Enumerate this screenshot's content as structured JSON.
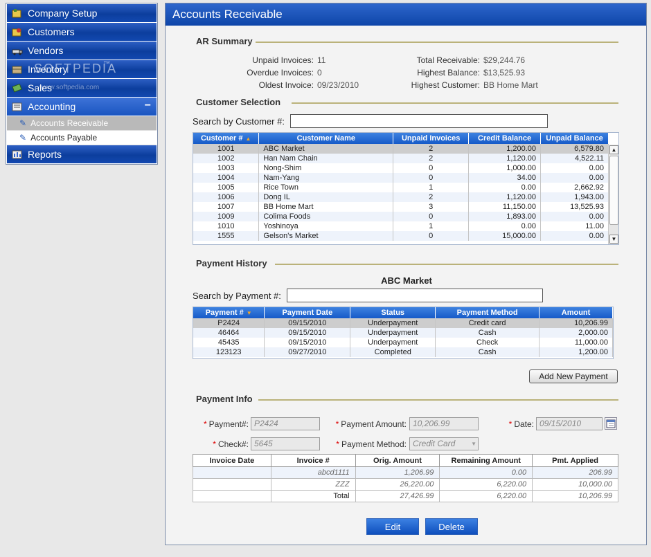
{
  "sidebar": {
    "items": [
      {
        "label": "Company Setup",
        "icon": "company-setup-icon"
      },
      {
        "label": "Customers",
        "icon": "customers-icon"
      },
      {
        "label": "Vendors",
        "icon": "vendors-icon"
      },
      {
        "label": "Inventory",
        "icon": "inventory-icon"
      },
      {
        "label": "Sales",
        "icon": "sales-icon"
      },
      {
        "label": "Accounting",
        "icon": "accounting-icon",
        "expanded": true
      },
      {
        "label": "Reports",
        "icon": "reports-icon"
      }
    ],
    "sub_items": [
      {
        "label": "Accounts Receivable",
        "selected": true
      },
      {
        "label": "Accounts Payable",
        "selected": false
      }
    ],
    "collapse_symbol": "−",
    "watermark": "SOFTPEDIA",
    "watermark_tm": "™",
    "watermark_url": "www.softpedia.com"
  },
  "header": {
    "title": "Accounts Receivable"
  },
  "ar_summary": {
    "title": "AR Summary",
    "unpaid_invoices_label": "Unpaid Invoices:",
    "unpaid_invoices": "11",
    "overdue_invoices_label": "Overdue Invoices:",
    "overdue_invoices": "0",
    "oldest_invoice_label": "Oldest Invoice:",
    "oldest_invoice": "09/23/2010",
    "total_receivable_label": "Total Receivable:",
    "total_receivable": "$29,244.76",
    "highest_balance_label": "Highest Balance:",
    "highest_balance": "$13,525.93",
    "highest_customer_label": "Highest Customer:",
    "highest_customer": "BB Home Mart"
  },
  "customer_selection": {
    "title": "Customer Selection",
    "search_label": "Search by Customer #:",
    "search_value": "",
    "columns": [
      "Customer #",
      "Customer Name",
      "Unpaid Invoices",
      "Credit Balance",
      "Unpaid Balance"
    ],
    "rows": [
      [
        "1001",
        "ABC Market",
        "2",
        "1,200.00",
        "6,579.80"
      ],
      [
        "1002",
        "Han Nam Chain",
        "2",
        "1,120.00",
        "4,522.11"
      ],
      [
        "1003",
        "Nong-Shim",
        "0",
        "1,000.00",
        "0.00"
      ],
      [
        "1004",
        "Nam-Yang",
        "0",
        "34.00",
        "0.00"
      ],
      [
        "1005",
        "Rice Town",
        "1",
        "0.00",
        "2,662.92"
      ],
      [
        "1006",
        "Dong IL",
        "2",
        "1,120.00",
        "1,943.00"
      ],
      [
        "1007",
        "BB Home Mart",
        "3",
        "11,150.00",
        "13,525.93"
      ],
      [
        "1009",
        "Colima Foods",
        "0",
        "1,893.00",
        "0.00"
      ],
      [
        "1010",
        "Yoshinoya",
        "1",
        "0.00",
        "11.00"
      ],
      [
        "1555",
        "Gelson's Market",
        "0",
        "15,000.00",
        "0.00"
      ]
    ]
  },
  "payment_history": {
    "title": "Payment History",
    "customer_name": "ABC Market",
    "search_label": "Search by Payment #:",
    "search_value": "",
    "columns": [
      "Payment #",
      "Payment Date",
      "Status",
      "Payment Method",
      "Amount"
    ],
    "rows": [
      [
        "P2424",
        "09/15/2010",
        "Underpayment",
        "Credit card",
        "10,206.99"
      ],
      [
        "46464",
        "09/15/2010",
        "Underpayment",
        "Cash",
        "2,000.00"
      ],
      [
        "45435",
        "09/15/2010",
        "Underpayment",
        "Check",
        "11,000.00"
      ],
      [
        "123123",
        "09/27/2010",
        "Completed",
        "Cash",
        "1,200.00"
      ]
    ],
    "add_button": "Add New Payment"
  },
  "payment_info": {
    "title": "Payment Info",
    "required_mark": "*",
    "payment_no_label": "Payment#:",
    "payment_no": "P2424",
    "payment_amount_label": "Payment Amount:",
    "payment_amount": "10,206.99",
    "date_label": "Date:",
    "date": "09/15/2010",
    "check_no_label": "Check#:",
    "check_no": "5645",
    "payment_method_label": "Payment Method:",
    "payment_method": "Credit Card",
    "invoice_columns": [
      "Invoice Date",
      "Invoice #",
      "Orig. Amount",
      "Remaining Amount",
      "Pmt. Applied"
    ],
    "invoice_rows": [
      [
        "",
        "abcd1111",
        "1,206.99",
        "0.00",
        "206.99"
      ],
      [
        "",
        "ZZZ",
        "26,220.00",
        "6,220.00",
        "10,000.00"
      ]
    ],
    "total_label": "Total",
    "total_orig": "27,426.99",
    "total_remaining": "6,220.00",
    "total_applied": "10,206.99"
  },
  "actions": {
    "edit": "Edit",
    "delete": "Delete"
  }
}
